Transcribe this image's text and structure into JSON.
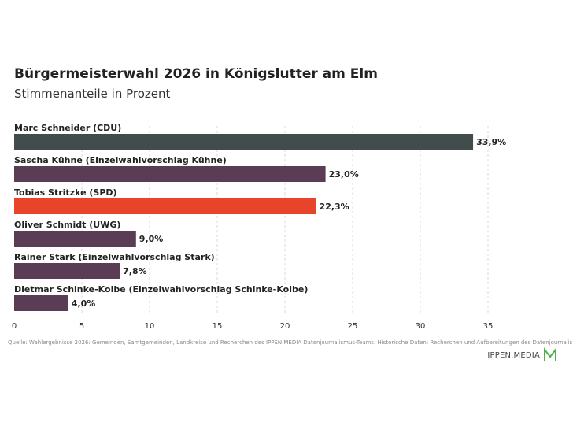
{
  "header": {
    "title": "Bürgermeisterwahl 2026 in Königslutter am Elm",
    "subtitle": "Stimmenanteile in Prozent"
  },
  "chart_data": {
    "type": "bar",
    "orientation": "horizontal",
    "categories": [
      "Marc Schneider (CDU)",
      "Sascha Kühne (Einzelwahlvorschlag Kühne)",
      "Tobias Stritzke (SPD)",
      "Oliver Schmidt (UWG)",
      "Rainer Stark (Einzelwahlvorschlag Stark)",
      "Dietmar Schinke-Kolbe (Einzelwahlvorschlag Schinke-Kolbe)"
    ],
    "values": [
      33.9,
      23.0,
      22.3,
      9.0,
      7.8,
      4.0
    ],
    "value_labels": [
      "33,9%",
      "23,0%",
      "22,3%",
      "9,0%",
      "7,8%",
      "4,0%"
    ],
    "colors": [
      "#414c4d",
      "#5b3c55",
      "#e8442a",
      "#5b3c55",
      "#5b3c55",
      "#5b3c55"
    ],
    "xticks": [
      0,
      5,
      10,
      15,
      20,
      25,
      30,
      35
    ],
    "xlim": [
      0,
      41
    ],
    "grid": "vertical dashed",
    "title": "Bürgermeisterwahl 2026 in Königslutter am Elm",
    "subtitle": "Stimmenanteile in Prozent"
  },
  "footer": {
    "source": "Quelle: Wahlergebnisse 2026: Gemeinden, Samtgemeinden, Landkreise und Recherchen des IPPEN.MEDIA Datenjournalismus-Teams. Historische Daten: Recherchen und Aufbereitungen des Datenjournalismus-Teams.",
    "brand": "IPPEN.MEDIA",
    "brand_color": "#4caf50"
  }
}
